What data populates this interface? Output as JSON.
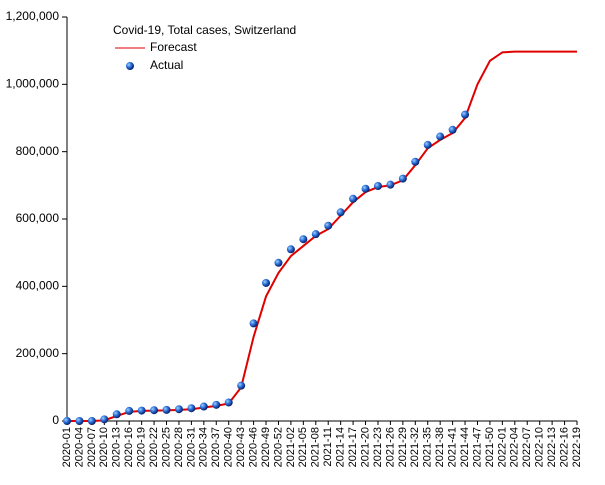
{
  "chart_data": {
    "type": "line-scatter",
    "title": "Covid-19, Total cases, Switzerland",
    "categories": [
      "2020-01",
      "2020-04",
      "2020-07",
      "2020-10",
      "2020-13",
      "2020-16",
      "2020-19",
      "2020-22",
      "2020-25",
      "2020-28",
      "2020-31",
      "2020-34",
      "2020-37",
      "2020-40",
      "2020-43",
      "2020-46",
      "2020-49",
      "2020-52",
      "2021-02",
      "2021-05",
      "2021-08",
      "2021-11",
      "2021-14",
      "2021-17",
      "2021-20",
      "2021-23",
      "2021-26",
      "2021-29",
      "2021-32",
      "2021-35",
      "2021-38",
      "2021-41",
      "2021-44",
      "2021-47",
      "2021-50",
      "2022-01",
      "2022-04",
      "2022-07",
      "2022-10",
      "2022-13",
      "2022-16",
      "2022-19"
    ],
    "series": [
      {
        "name": "Forecast",
        "color": "#e00000",
        "values": [
          0,
          0,
          0,
          2000,
          15000,
          27000,
          30000,
          31000,
          31500,
          33000,
          35000,
          40000,
          45000,
          52000,
          100000,
          250000,
          370000,
          440000,
          490000,
          520000,
          550000,
          570000,
          610000,
          650000,
          680000,
          695000,
          700000,
          715000,
          760000,
          810000,
          835000,
          855000,
          900000,
          1000000,
          1070000,
          1095000,
          1097000,
          1097000,
          1097000,
          1097000,
          1097000,
          1097000
        ]
      },
      {
        "name": "Actual",
        "color": "#2255cc",
        "values": [
          0,
          0,
          0,
          5000,
          20000,
          30000,
          31000,
          32000,
          33000,
          35000,
          38000,
          43000,
          48000,
          55000,
          105000,
          290000,
          410000,
          470000,
          510000,
          540000,
          555000,
          580000,
          620000,
          660000,
          690000,
          698000,
          702000,
          720000,
          770000,
          820000,
          845000,
          865000,
          910000,
          null,
          null,
          null,
          null,
          null,
          null,
          null,
          null,
          null
        ]
      }
    ],
    "ylim": [
      0,
      1200000
    ],
    "yticks": [
      0,
      {
        "value": 200000,
        "label": "200,000"
      },
      {
        "value": 400000,
        "label": "400,000"
      },
      {
        "value": 600000,
        "label": "600,000"
      },
      {
        "value": 800000,
        "label": "800,000"
      },
      {
        "value": 1000000,
        "label": "1,000,000"
      },
      {
        "value": 1200000,
        "label": "1,200,000"
      }
    ],
    "grid": false
  }
}
